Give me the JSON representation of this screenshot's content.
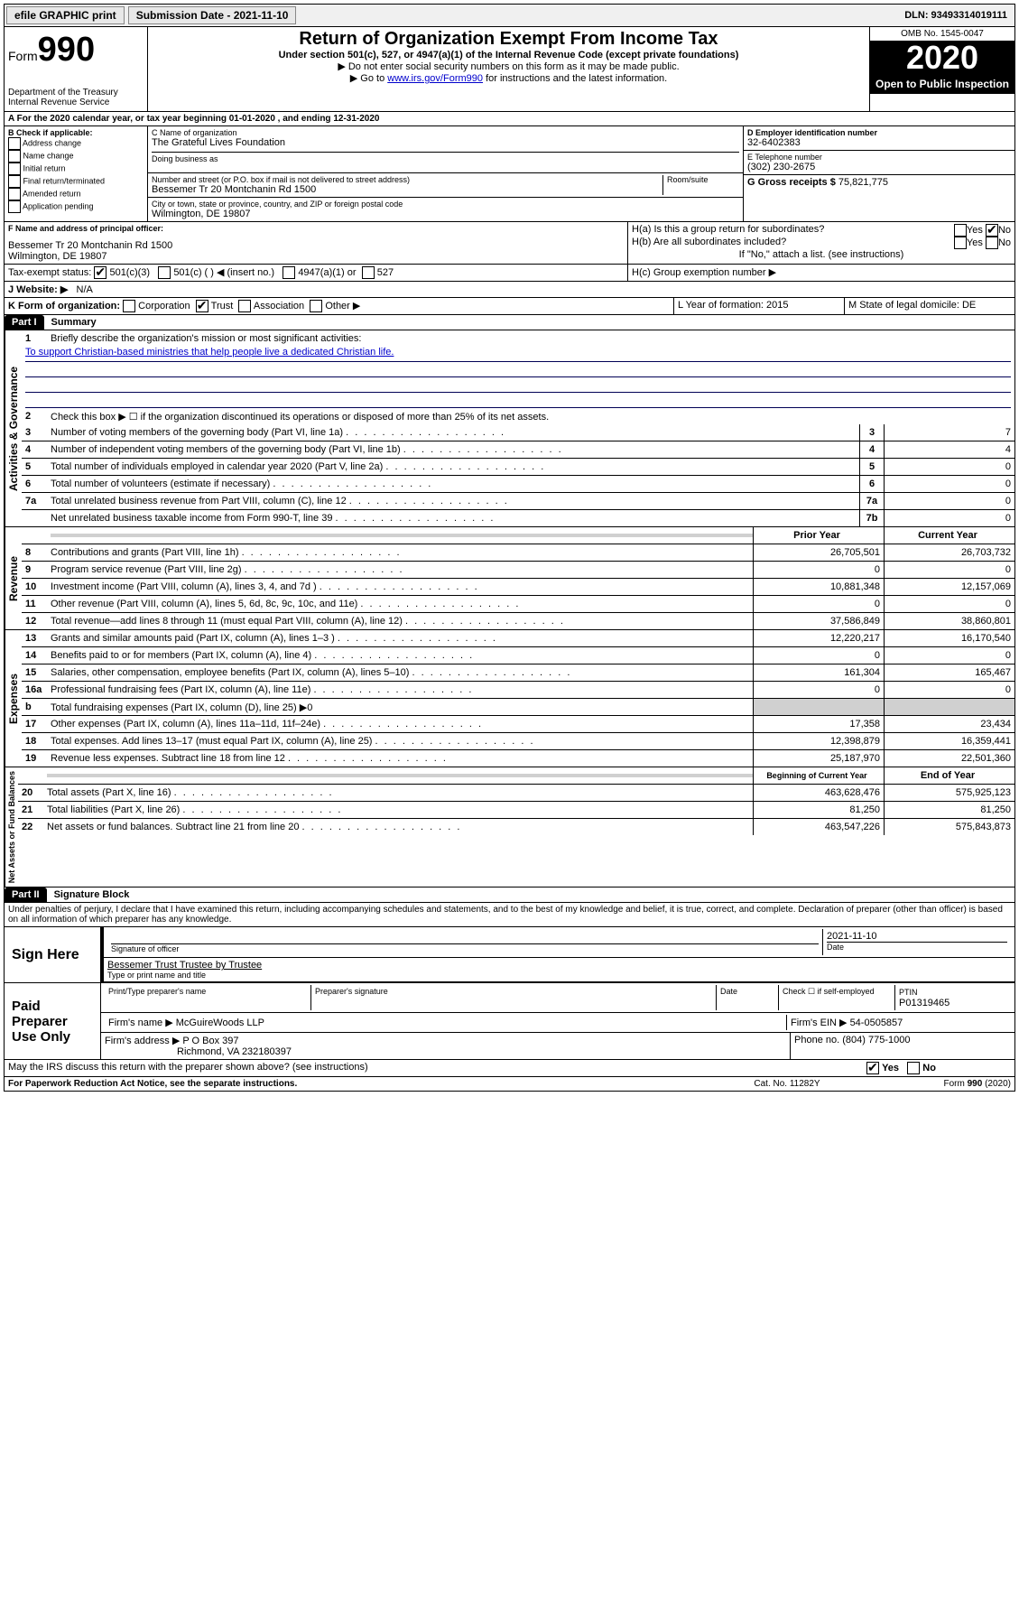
{
  "topbar": {
    "efile": "efile GRAPHIC print",
    "submission_label": "Submission Date - 2021-11-10",
    "dln": "DLN: 93493314019111"
  },
  "header": {
    "form_label": "Form",
    "form_num": "990",
    "dept": "Department of the Treasury",
    "irs": "Internal Revenue Service",
    "title": "Return of Organization Exempt From Income Tax",
    "subtitle": "Under section 501(c), 527, or 4947(a)(1) of the Internal Revenue Code (except private foundations)",
    "note1": "Do not enter social security numbers on this form as it may be made public.",
    "note2_pre": "Go to ",
    "note2_link": "www.irs.gov/Form990",
    "note2_post": " for instructions and the latest information.",
    "omb": "OMB No. 1545-0047",
    "year": "2020",
    "open": "Open to Public Inspection"
  },
  "rowA": "A For the 2020 calendar year, or tax year beginning 01-01-2020    , and ending 12-31-2020",
  "colB": {
    "title": "B Check if applicable:",
    "opts": [
      "Address change",
      "Name change",
      "Initial return",
      "Final return/terminated",
      "Amended return",
      "Application pending"
    ]
  },
  "colC": {
    "name_lbl": "C Name of organization",
    "name": "The Grateful Lives Foundation",
    "dba_lbl": "Doing business as",
    "addr_lbl": "Number and street (or P.O. box if mail is not delivered to street address)",
    "room_lbl": "Room/suite",
    "addr": "Bessemer Tr 20 Montchanin Rd 1500",
    "city_lbl": "City or town, state or province, country, and ZIP or foreign postal code",
    "city": "Wilmington, DE  19807"
  },
  "colD": {
    "ein_lbl": "D Employer identification number",
    "ein": "32-6402383",
    "tel_lbl": "E Telephone number",
    "tel": "(302) 230-2675",
    "gross_lbl": "G Gross receipts $",
    "gross": "75,821,775"
  },
  "rowF": {
    "lbl": "F  Name and address of principal officer:",
    "val": "Bessemer Tr 20 Montchanin Rd 1500\nWilmington, DE  19807"
  },
  "rowH": {
    "ha": "H(a)  Is this a group return for subordinates?",
    "hb": "H(b)  Are all subordinates included?",
    "hb_note": "If \"No,\" attach a list. (see instructions)",
    "hc": "H(c)  Group exemption number ▶"
  },
  "rowI": {
    "lbl": "Tax-exempt status:",
    "o1": "501(c)(3)",
    "o2": "501(c) (   ) ◀ (insert no.)",
    "o3": "4947(a)(1) or",
    "o4": "527"
  },
  "rowJ": {
    "lbl": "J   Website: ▶",
    "val": "N/A"
  },
  "rowK": {
    "lbl": "K Form of organization:",
    "o1": "Corporation",
    "o2": "Trust",
    "o3": "Association",
    "o4": "Other ▶",
    "L": "L Year of formation: 2015",
    "M": "M State of legal domicile: DE"
  },
  "partI": {
    "hdr": "Part I",
    "title": "Summary",
    "q1_lbl": "Briefly describe the organization's mission or most significant activities:",
    "q1_val": "To support Christian-based ministries that help people live a dedicated Christian life.",
    "q2": "Check this box ▶ ☐  if the organization discontinued its operations or disposed of more than 25% of its net assets.",
    "side_ag": "Activities & Governance",
    "side_rev": "Revenue",
    "side_exp": "Expenses",
    "side_net": "Net Assets or Fund Balances",
    "lines_ag": [
      {
        "n": "3",
        "d": "Number of voting members of the governing body (Part VI, line 1a)",
        "box": "3",
        "v": "7"
      },
      {
        "n": "4",
        "d": "Number of independent voting members of the governing body (Part VI, line 1b)",
        "box": "4",
        "v": "4"
      },
      {
        "n": "5",
        "d": "Total number of individuals employed in calendar year 2020 (Part V, line 2a)",
        "box": "5",
        "v": "0"
      },
      {
        "n": "6",
        "d": "Total number of volunteers (estimate if necessary)",
        "box": "6",
        "v": "0"
      },
      {
        "n": "7a",
        "d": "Total unrelated business revenue from Part VIII, column (C), line 12",
        "box": "7a",
        "v": "0"
      },
      {
        "n": "",
        "d": "Net unrelated business taxable income from Form 990-T, line 39",
        "box": "7b",
        "v": "0"
      }
    ],
    "col_py": "Prior Year",
    "col_cy": "Current Year",
    "lines_rev": [
      {
        "n": "8",
        "d": "Contributions and grants (Part VIII, line 1h)",
        "py": "26,705,501",
        "cy": "26,703,732"
      },
      {
        "n": "9",
        "d": "Program service revenue (Part VIII, line 2g)",
        "py": "0",
        "cy": "0"
      },
      {
        "n": "10",
        "d": "Investment income (Part VIII, column (A), lines 3, 4, and 7d )",
        "py": "10,881,348",
        "cy": "12,157,069"
      },
      {
        "n": "11",
        "d": "Other revenue (Part VIII, column (A), lines 5, 6d, 8c, 9c, 10c, and 11e)",
        "py": "0",
        "cy": "0"
      },
      {
        "n": "12",
        "d": "Total revenue—add lines 8 through 11 (must equal Part VIII, column (A), line 12)",
        "py": "37,586,849",
        "cy": "38,860,801"
      }
    ],
    "lines_exp": [
      {
        "n": "13",
        "d": "Grants and similar amounts paid (Part IX, column (A), lines 1–3 )",
        "py": "12,220,217",
        "cy": "16,170,540"
      },
      {
        "n": "14",
        "d": "Benefits paid to or for members (Part IX, column (A), line 4)",
        "py": "0",
        "cy": "0"
      },
      {
        "n": "15",
        "d": "Salaries, other compensation, employee benefits (Part IX, column (A), lines 5–10)",
        "py": "161,304",
        "cy": "165,467"
      },
      {
        "n": "16a",
        "d": "Professional fundraising fees (Part IX, column (A), line 11e)",
        "py": "0",
        "cy": "0"
      },
      {
        "n": "b",
        "d": "Total fundraising expenses (Part IX, column (D), line 25) ▶0",
        "py": "",
        "cy": "",
        "shade": true
      },
      {
        "n": "17",
        "d": "Other expenses (Part IX, column (A), lines 11a–11d, 11f–24e)",
        "py": "17,358",
        "cy": "23,434"
      },
      {
        "n": "18",
        "d": "Total expenses. Add lines 13–17 (must equal Part IX, column (A), line 25)",
        "py": "12,398,879",
        "cy": "16,359,441"
      },
      {
        "n": "19",
        "d": "Revenue less expenses. Subtract line 18 from line 12",
        "py": "25,187,970",
        "cy": "22,501,360"
      }
    ],
    "col_bcy": "Beginning of Current Year",
    "col_eoy": "End of Year",
    "lines_net": [
      {
        "n": "20",
        "d": "Total assets (Part X, line 16)",
        "py": "463,628,476",
        "cy": "575,925,123"
      },
      {
        "n": "21",
        "d": "Total liabilities (Part X, line 26)",
        "py": "81,250",
        "cy": "81,250"
      },
      {
        "n": "22",
        "d": "Net assets or fund balances. Subtract line 21 from line 20",
        "py": "463,547,226",
        "cy": "575,843,873"
      }
    ]
  },
  "partII": {
    "hdr": "Part II",
    "title": "Signature Block",
    "perjury": "Under penalties of perjury, I declare that I have examined this return, including accompanying schedules and statements, and to the best of my knowledge and belief, it is true, correct, and complete. Declaration of preparer (other than officer) is based on all information of which preparer has any knowledge.",
    "sign_here": "Sign Here",
    "sig_officer": "Signature of officer",
    "date": "2021-11-10",
    "date_lbl": "Date",
    "officer_name": "Bessemer Trust Trustee by Trustee",
    "type_name": "Type or print name and title",
    "paid": "Paid Preparer Use Only",
    "prep_name_lbl": "Print/Type preparer's name",
    "prep_sig_lbl": "Preparer's signature",
    "prep_date_lbl": "Date",
    "check_lbl": "Check ☐ if self-employed",
    "ptin_lbl": "PTIN",
    "ptin": "P01319465",
    "firm_name_lbl": "Firm's name    ▶",
    "firm_name": "McGuireWoods LLP",
    "firm_ein_lbl": "Firm's EIN ▶",
    "firm_ein": "54-0505857",
    "firm_addr_lbl": "Firm's address ▶",
    "firm_addr": "P O Box 397",
    "firm_city": "Richmond, VA  232180397",
    "phone_lbl": "Phone no.",
    "phone": "(804) 775-1000",
    "discuss": "May the IRS discuss this return with the preparer shown above? (see instructions)",
    "yes": "Yes",
    "no": "No"
  },
  "footer": {
    "pra": "For Paperwork Reduction Act Notice, see the separate instructions.",
    "cat": "Cat. No. 11282Y",
    "form": "Form 990 (2020)"
  }
}
